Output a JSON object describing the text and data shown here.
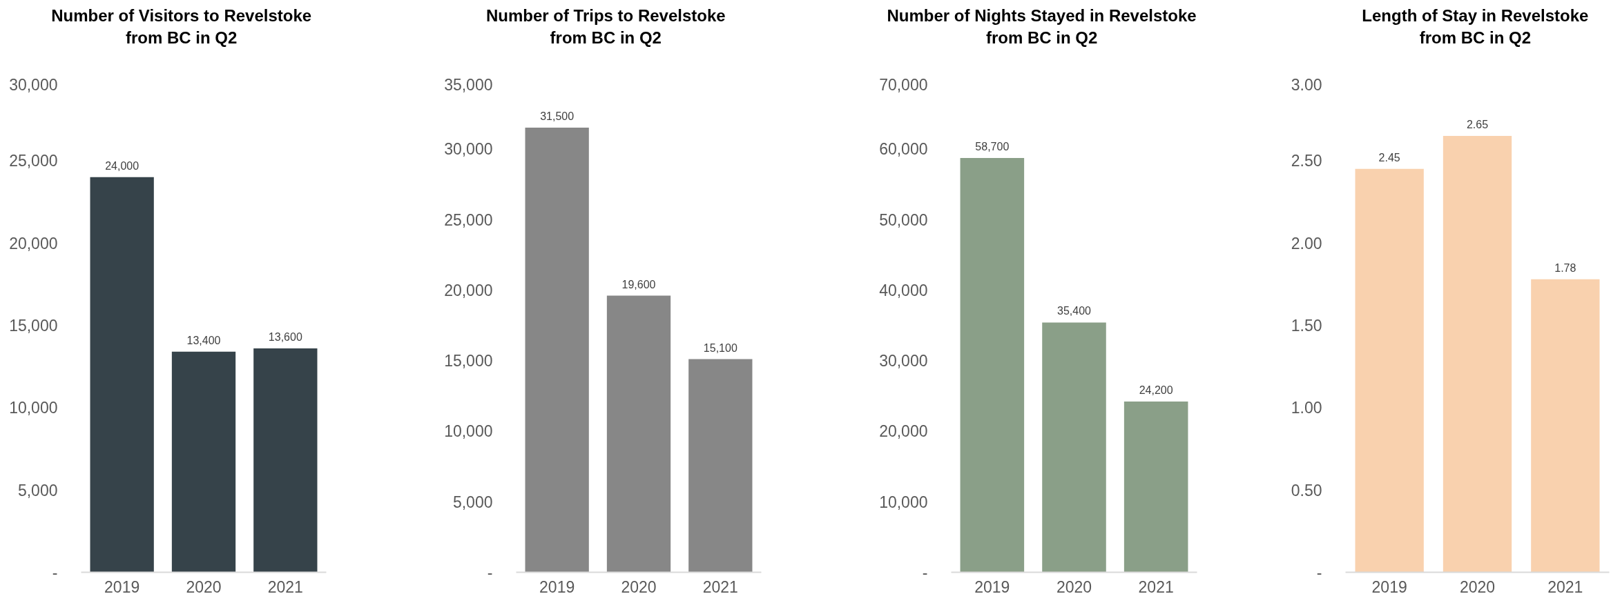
{
  "chart_data": [
    {
      "type": "bar",
      "title": "Number of Visitors to Revelstoke\nfrom BC in Q2",
      "categories": [
        "2019",
        "2020",
        "2021"
      ],
      "values": [
        24000,
        13400,
        13600
      ],
      "value_labels": [
        "24,000",
        "13,400",
        "13,600"
      ],
      "color": "#36434a",
      "ylim": [
        0,
        30000
      ],
      "yticks": [
        {
          "value": 0,
          "label": "-"
        },
        {
          "value": 5000,
          "label": "5,000"
        },
        {
          "value": 10000,
          "label": "10,000"
        },
        {
          "value": 15000,
          "label": "15,000"
        },
        {
          "value": 20000,
          "label": "20,000"
        },
        {
          "value": 25000,
          "label": "25,000"
        },
        {
          "value": 30000,
          "label": "30,000"
        }
      ]
    },
    {
      "type": "bar",
      "title": "Number of Trips to Revelstoke\nfrom BC in Q2",
      "categories": [
        "2019",
        "2020",
        "2021"
      ],
      "values": [
        31500,
        19600,
        15100
      ],
      "value_labels": [
        "31,500",
        "19,600",
        "15,100"
      ],
      "color": "#878787",
      "ylim": [
        0,
        35000
      ],
      "yticks": [
        {
          "value": 0,
          "label": "-"
        },
        {
          "value": 5000,
          "label": "5,000"
        },
        {
          "value": 10000,
          "label": "10,000"
        },
        {
          "value": 15000,
          "label": "15,000"
        },
        {
          "value": 20000,
          "label": "20,000"
        },
        {
          "value": 25000,
          "label": "25,000"
        },
        {
          "value": 30000,
          "label": "30,000"
        },
        {
          "value": 35000,
          "label": "35,000"
        }
      ]
    },
    {
      "type": "bar",
      "title": "Number of Nights Stayed in Revelstoke\nfrom BC in Q2",
      "categories": [
        "2019",
        "2020",
        "2021"
      ],
      "values": [
        58700,
        35400,
        24200
      ],
      "value_labels": [
        "58,700",
        "35,400",
        "24,200"
      ],
      "color": "#8a9f88",
      "ylim": [
        0,
        70000
      ],
      "yticks": [
        {
          "value": 0,
          "label": "-"
        },
        {
          "value": 10000,
          "label": "10,000"
        },
        {
          "value": 20000,
          "label": "20,000"
        },
        {
          "value": 30000,
          "label": "30,000"
        },
        {
          "value": 40000,
          "label": "40,000"
        },
        {
          "value": 50000,
          "label": "50,000"
        },
        {
          "value": 60000,
          "label": "60,000"
        },
        {
          "value": 70000,
          "label": "70,000"
        }
      ]
    },
    {
      "type": "bar",
      "title": "Length of Stay in Revelstoke\nfrom BC in Q2",
      "categories": [
        "2019",
        "2020",
        "2021"
      ],
      "values": [
        2.45,
        2.65,
        1.78
      ],
      "color": "#f9d1ae",
      "data_labels": true,
      "ylim": [
        0,
        3
      ],
      "yticks": [
        {
          "value": 0,
          "label": "-"
        },
        {
          "value": 0.5,
          "label": "0.50"
        },
        {
          "value": 1,
          "label": "1.00"
        },
        {
          "value": 1.5,
          "label": "1.50"
        },
        {
          "value": 2,
          "label": "2.00"
        },
        {
          "value": 2.5,
          "label": "2.50"
        },
        {
          "value": 3,
          "label": "3.00"
        }
      ]
    }
  ]
}
